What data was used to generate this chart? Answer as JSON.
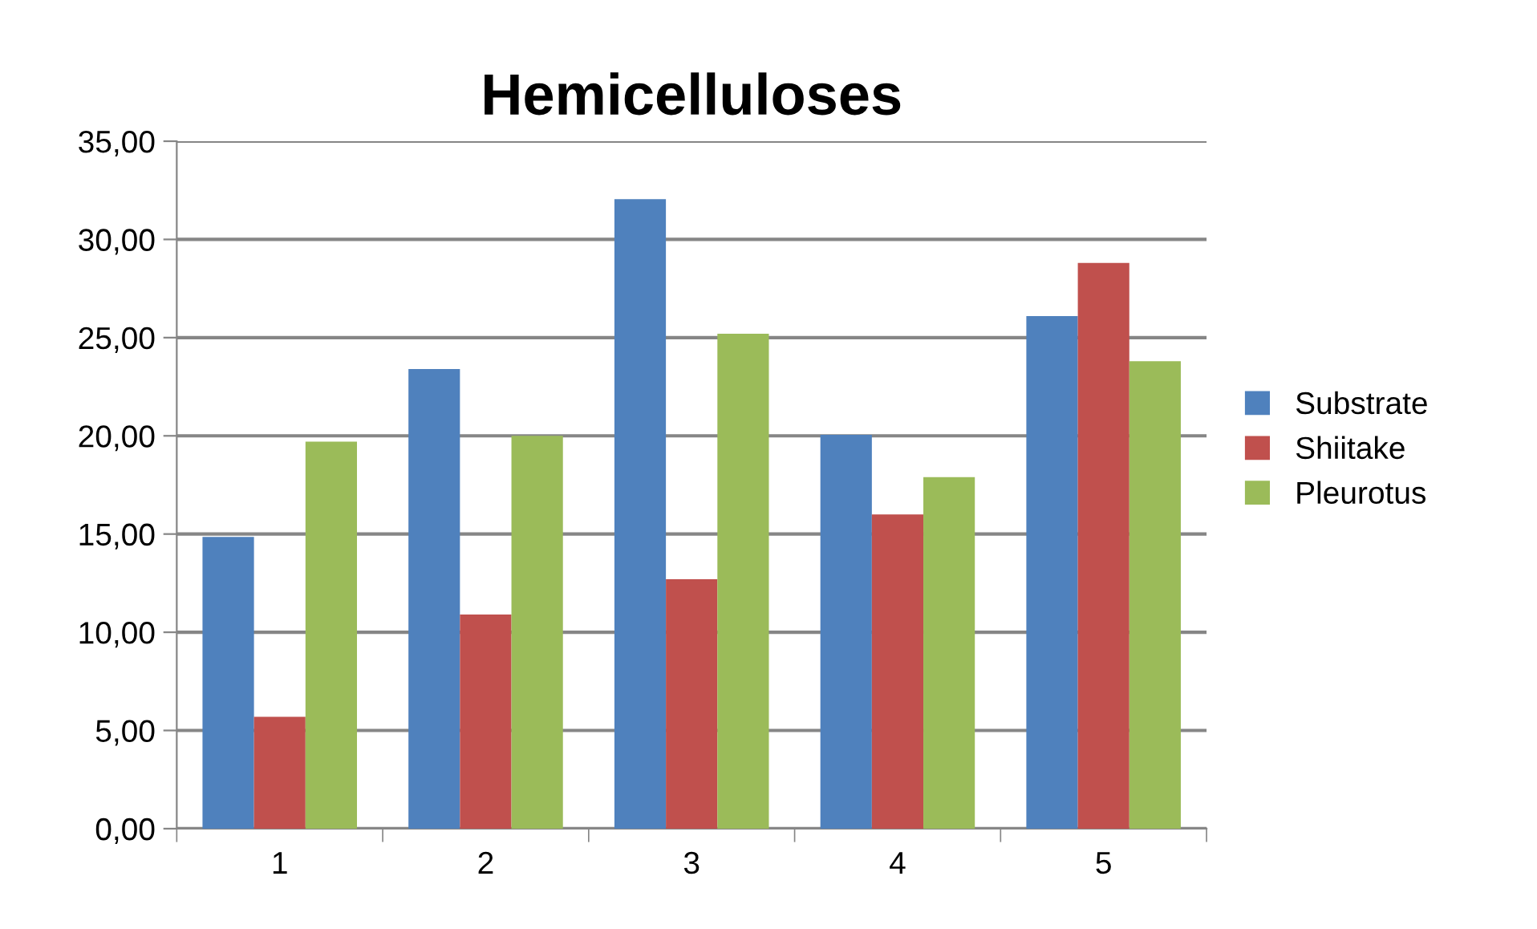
{
  "chart_data": {
    "type": "bar",
    "title": "Hemicelluloses",
    "categories": [
      "1",
      "2",
      "3",
      "4",
      "5"
    ],
    "series": [
      {
        "name": "Substrate",
        "color": "#4f81bd",
        "values": [
          14.85,
          23.4,
          32.05,
          20.05,
          26.1
        ]
      },
      {
        "name": "Shiitake",
        "color": "#c0504d",
        "values": [
          5.7,
          10.9,
          12.7,
          16.0,
          28.8
        ]
      },
      {
        "name": "Pleurotus",
        "color": "#9bbb59",
        "values": [
          19.7,
          20.0,
          25.2,
          17.9,
          23.8
        ]
      }
    ],
    "ylim": [
      0,
      35
    ],
    "yticks": [
      {
        "value": 0,
        "label": "0,00"
      },
      {
        "value": 5,
        "label": "5,00"
      },
      {
        "value": 10,
        "label": "10,00"
      },
      {
        "value": 15,
        "label": "15,00"
      },
      {
        "value": 20,
        "label": "20,00"
      },
      {
        "value": 25,
        "label": "25,00"
      },
      {
        "value": 30,
        "label": "30,00"
      },
      {
        "value": 35,
        "label": "35,00"
      }
    ],
    "grid": "y",
    "legend": "right"
  }
}
